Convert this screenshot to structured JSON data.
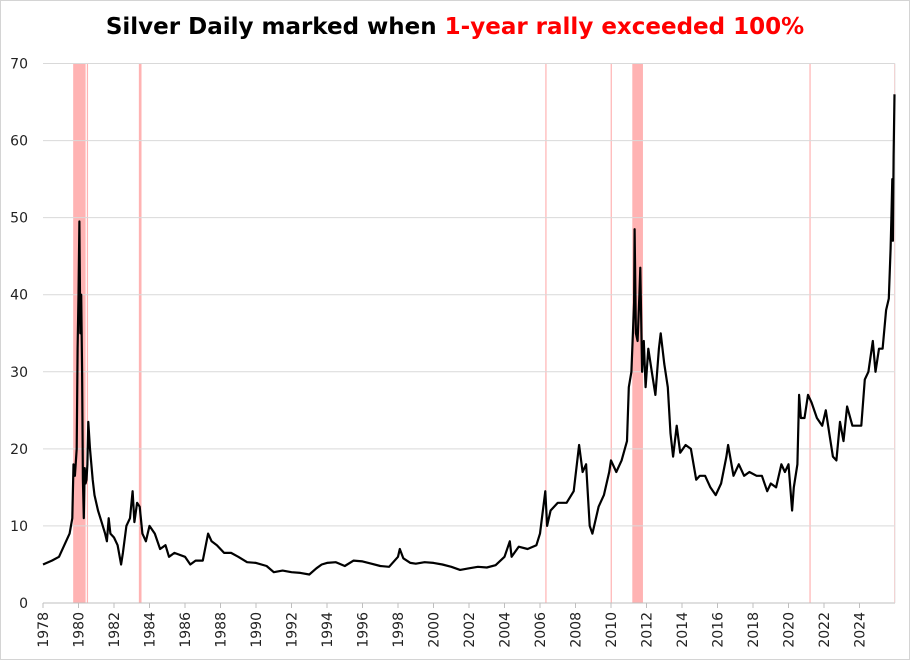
{
  "chart_data": {
    "type": "line",
    "title": "Silver Daily marked when 1-year rally exceeded 100%",
    "title_parts": {
      "plain": "Silver Daily marked when ",
      "highlight": "1-year rally exceeded 100%"
    },
    "colors": {
      "line": "#000000",
      "band": "#ffb3b3",
      "highlight": "#ff0000",
      "grid": "#d9d9d9"
    },
    "xlabel": "",
    "ylabel": "",
    "xlim": [
      1978,
      2026
    ],
    "ylim": [
      0,
      70
    ],
    "grid": true,
    "legend": "none",
    "x_ticks": [
      "1978",
      "1980",
      "1982",
      "1984",
      "1986",
      "1988",
      "1990",
      "1992",
      "1994",
      "1996",
      "1998",
      "2000",
      "2002",
      "2004",
      "2006",
      "2008",
      "2010",
      "2012",
      "2014",
      "2016",
      "2018",
      "2020",
      "2022",
      "2024"
    ],
    "y_ticks": [
      "0",
      "10",
      "20",
      "30",
      "40",
      "50",
      "60",
      "70"
    ],
    "highlight_bands": [
      [
        1979.7,
        1980.4
      ],
      [
        1980.47,
        1980.5
      ],
      [
        1983.4,
        1983.55
      ],
      [
        2006.3,
        2006.35
      ],
      [
        2009.98,
        2010.02
      ],
      [
        2011.2,
        2011.8
      ],
      [
        2021.18,
        2021.22
      ],
      [
        2025.95,
        2025.99
      ]
    ],
    "series": [
      {
        "name": "Silver",
        "x": [
          1978.0,
          1978.5,
          1978.9,
          1979.2,
          1979.5,
          1979.65,
          1979.72,
          1979.8,
          1979.9,
          1979.95,
          1980.0,
          1980.05,
          1980.1,
          1980.15,
          1980.2,
          1980.25,
          1980.3,
          1980.35,
          1980.4,
          1980.45,
          1980.5,
          1980.55,
          1980.65,
          1980.8,
          1980.9,
          1981.1,
          1981.3,
          1981.5,
          1981.6,
          1981.7,
          1981.8,
          1982.0,
          1982.2,
          1982.4,
          1982.5,
          1982.7,
          1982.9,
          1983.05,
          1983.15,
          1983.3,
          1983.45,
          1983.6,
          1983.8,
          1984.0,
          1984.3,
          1984.6,
          1984.9,
          1985.1,
          1985.4,
          1986.0,
          1986.3,
          1986.6,
          1987.0,
          1987.3,
          1987.5,
          1987.8,
          1988.2,
          1988.6,
          1989.0,
          1989.5,
          1990.0,
          1990.6,
          1991.0,
          1991.5,
          1992.0,
          1992.5,
          1993.0,
          1993.4,
          1993.7,
          1994.0,
          1994.5,
          1995.0,
          1995.5,
          1996.0,
          1996.5,
          1997.0,
          1997.5,
          1998.0,
          1998.1,
          1998.3,
          1998.7,
          1999.0,
          1999.5,
          2000.0,
          2000.5,
          2001.0,
          2001.5,
          2002.0,
          2002.5,
          2003.0,
          2003.5,
          2004.0,
          2004.3,
          2004.4,
          2004.8,
          2005.3,
          2005.8,
          2006.0,
          2006.3,
          2006.4,
          2006.6,
          2007.0,
          2007.5,
          2007.9,
          2008.2,
          2008.4,
          2008.6,
          2008.8,
          2008.95,
          2009.3,
          2009.6,
          2009.9,
          2010.0,
          2010.3,
          2010.6,
          2010.9,
          2011.0,
          2011.15,
          2011.3,
          2011.33,
          2011.4,
          2011.5,
          2011.6,
          2011.65,
          2011.75,
          2011.85,
          2011.95,
          2012.1,
          2012.3,
          2012.5,
          2012.7,
          2012.8,
          2013.0,
          2013.2,
          2013.35,
          2013.5,
          2013.7,
          2013.9,
          2014.2,
          2014.5,
          2014.8,
          2015.0,
          2015.3,
          2015.6,
          2015.9,
          2016.2,
          2016.5,
          2016.6,
          2016.9,
          2017.2,
          2017.5,
          2017.8,
          2018.2,
          2018.5,
          2018.8,
          2019.0,
          2019.3,
          2019.6,
          2019.8,
          2020.0,
          2020.2,
          2020.3,
          2020.5,
          2020.6,
          2020.7,
          2020.9,
          2021.1,
          2021.3,
          2021.6,
          2021.9,
          2022.1,
          2022.3,
          2022.5,
          2022.7,
          2022.9,
          2023.1,
          2023.3,
          2023.6,
          2023.9,
          2024.1,
          2024.3,
          2024.5,
          2024.75,
          2024.9,
          2025.1,
          2025.3,
          2025.5,
          2025.65,
          2025.75,
          2025.8,
          2025.85,
          2025.88,
          2025.92,
          2025.97
        ],
        "values": [
          5.0,
          5.5,
          6.0,
          7.5,
          9.0,
          11,
          18,
          16.5,
          20,
          33,
          40,
          49.5,
          35,
          40,
          30,
          16,
          11,
          17.5,
          15.5,
          16,
          18,
          23.5,
          20,
          16,
          14,
          12,
          10.5,
          9,
          8,
          11,
          9,
          8.5,
          7.5,
          5,
          6.5,
          10,
          11,
          14.5,
          10.5,
          13,
          12.5,
          9,
          8,
          10,
          9,
          7,
          7.5,
          6,
          6.5,
          6,
          5,
          5.5,
          5.5,
          9,
          8,
          7.5,
          6.5,
          6.5,
          6,
          5.3,
          5.2,
          4.8,
          4,
          4.2,
          4,
          3.9,
          3.7,
          4.5,
          5,
          5.2,
          5.3,
          4.8,
          5.5,
          5.4,
          5.1,
          4.8,
          4.7,
          6.0,
          7,
          5.8,
          5.2,
          5.1,
          5.3,
          5.2,
          5.0,
          4.7,
          4.3,
          4.5,
          4.7,
          4.6,
          4.9,
          6.0,
          8,
          6,
          7.3,
          7.0,
          7.5,
          9,
          14.5,
          10,
          12,
          13,
          13,
          14.5,
          20.5,
          17,
          18,
          10,
          9,
          12.5,
          14,
          17,
          18.5,
          17,
          18.5,
          21,
          28,
          30,
          39,
          48.5,
          35,
          34,
          40,
          43.5,
          30,
          34,
          28,
          33,
          30,
          27,
          33,
          35,
          31,
          28,
          22,
          19,
          23,
          19.5,
          20.5,
          20,
          16,
          16.5,
          16.5,
          15,
          14,
          15.5,
          19,
          20.5,
          16.5,
          18,
          16.5,
          17,
          16.5,
          16.5,
          14.5,
          15.5,
          15,
          18,
          17,
          18,
          12,
          15,
          18,
          27,
          24,
          24,
          27,
          26,
          24,
          23,
          25,
          22,
          19,
          18.5,
          23.5,
          21,
          25.5,
          23,
          23,
          23,
          29,
          30,
          34,
          30,
          33,
          33,
          38,
          39.5,
          46,
          50,
          55,
          47,
          58,
          66
        ]
      }
    ]
  }
}
